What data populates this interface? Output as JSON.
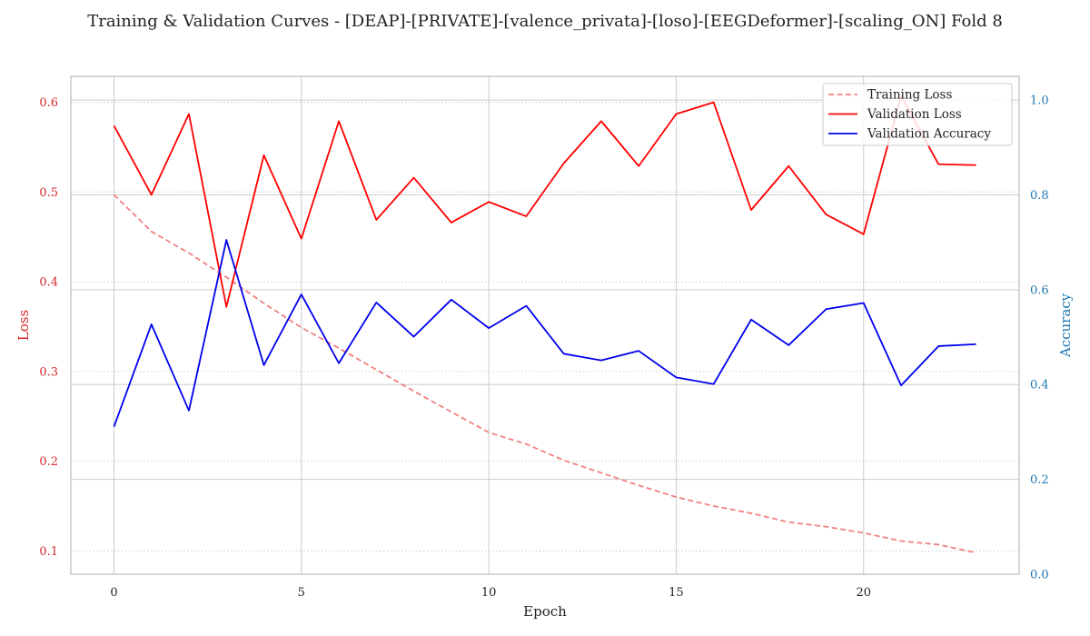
{
  "chart_data": {
    "type": "line",
    "title": "Training & Validation Curves - [DEAP]-[PRIVATE]-[valence_privata]-[loso]-[EEGDeformer]-[scaling_ON] Fold 8",
    "xlabel": "Epoch",
    "ylabel_left": "Loss",
    "ylabel_right": "Accuracy",
    "x": [
      0,
      1,
      2,
      3,
      4,
      5,
      6,
      7,
      8,
      9,
      10,
      11,
      12,
      13,
      14,
      15,
      16,
      17,
      18,
      19,
      20,
      21,
      22,
      23
    ],
    "xlim": [
      -1.15,
      24.15
    ],
    "ylim_left": [
      0.074,
      0.629
    ],
    "ylim_right": [
      0.0,
      1.05
    ],
    "x_ticks": [
      0,
      5,
      10,
      15,
      20
    ],
    "y_ticks_left": [
      0.1,
      0.2,
      0.3,
      0.4,
      0.5,
      0.6
    ],
    "y_ticks_right": [
      0.0,
      0.2,
      0.4,
      0.6,
      0.8,
      1.0
    ],
    "grid": true,
    "legend_position": "top-right",
    "colors": {
      "left_axis": "#d62728",
      "right_axis": "#1f77b4",
      "grid": "#cccccc",
      "frame": "#bbbbbb"
    },
    "series": [
      {
        "name": "Training Loss",
        "axis": "left",
        "style": "dashed",
        "color": "#f08080",
        "values": [
          0.497,
          0.456,
          0.432,
          0.405,
          0.376,
          0.349,
          0.326,
          0.302,
          0.278,
          0.255,
          0.232,
          0.219,
          0.201,
          0.187,
          0.173,
          0.16,
          0.15,
          0.142,
          0.132,
          0.127,
          0.12,
          0.111,
          0.107,
          0.098
        ]
      },
      {
        "name": "Validation Loss",
        "axis": "left",
        "style": "solid",
        "color": "#ff0000",
        "values": [
          0.574,
          0.497,
          0.587,
          0.372,
          0.541,
          0.448,
          0.579,
          0.469,
          0.516,
          0.466,
          0.489,
          0.473,
          0.532,
          0.579,
          0.529,
          0.587,
          0.6,
          0.48,
          0.529,
          0.475,
          0.453,
          0.607,
          0.531,
          0.53
        ]
      },
      {
        "name": "Validation Accuracy",
        "axis": "right",
        "style": "solid",
        "color": "#0000ee",
        "values": [
          0.311,
          0.527,
          0.345,
          0.705,
          0.441,
          0.59,
          0.445,
          0.573,
          0.501,
          0.579,
          0.519,
          0.566,
          0.465,
          0.451,
          0.471,
          0.415,
          0.401,
          0.537,
          0.483,
          0.559,
          0.572,
          0.398,
          0.481,
          0.485
        ]
      }
    ]
  }
}
